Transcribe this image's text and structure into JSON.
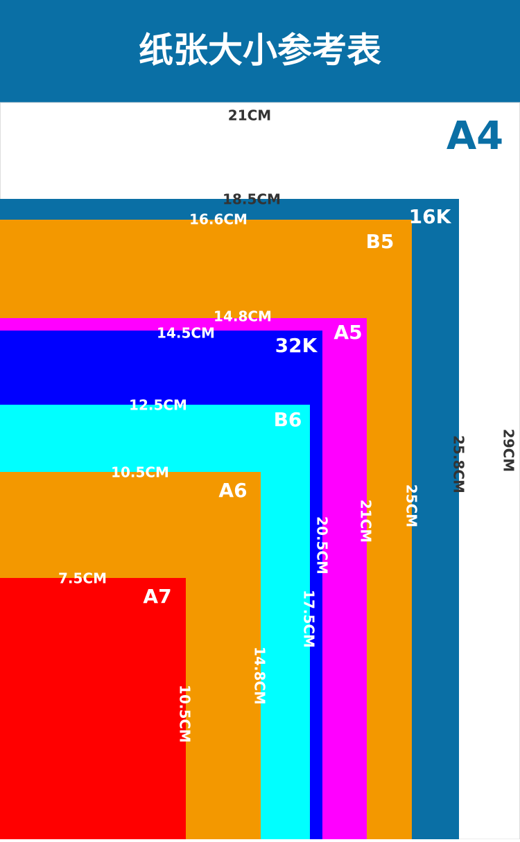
{
  "title": "纸张大小参考表",
  "papers": [
    {
      "name": "A4",
      "width": "21CM",
      "height": "29CM"
    },
    {
      "name": "16K",
      "width": "18.5CM",
      "height": "25.8CM"
    },
    {
      "name": "B5",
      "width": "16.6CM",
      "height": "25CM"
    },
    {
      "name": "A5",
      "width": "14.8CM",
      "height": "21CM"
    },
    {
      "name": "32K",
      "width": "14.5CM",
      "height": "20.5CM"
    },
    {
      "name": "B6",
      "width": "12.5CM",
      "height": "17.5CM"
    },
    {
      "name": "A6",
      "width": "10.5CM",
      "height": "14.8CM"
    },
    {
      "name": "A7",
      "width": "7.5CM",
      "height": "10.5CM"
    }
  ]
}
